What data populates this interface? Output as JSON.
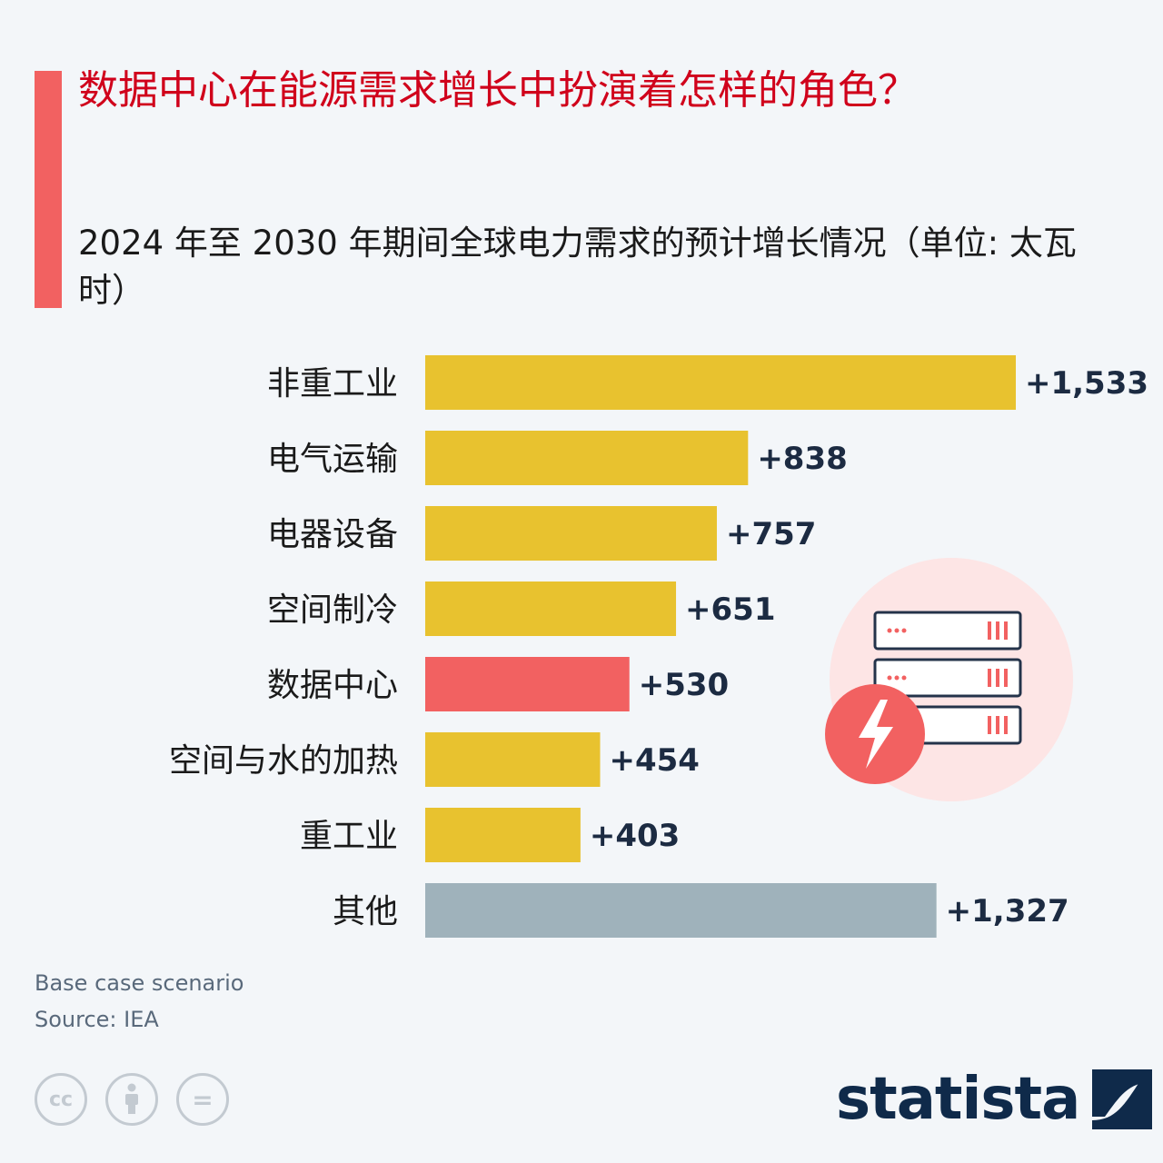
{
  "header": {
    "title": "数据中心在能源需求增长中扮演着怎样的角色？",
    "subtitle": "2024 年至 2030 年期间全球电力需求的预计增长情况（单位: 太瓦时）"
  },
  "chart_data": {
    "type": "bar",
    "orientation": "horizontal",
    "categories": [
      "非重工业",
      "电气运输",
      "电器设备",
      "空间制冷",
      "数据中心",
      "空间与水的加热",
      "重工业",
      "其他"
    ],
    "values": [
      1533,
      838,
      757,
      651,
      530,
      454,
      403,
      1327
    ],
    "value_labels": [
      "+1,533",
      "+838",
      "+757",
      "+651",
      "+530",
      "+454",
      "+403",
      "+1,327"
    ],
    "bar_colors": [
      "#e8c22f",
      "#e8c22f",
      "#e8c22f",
      "#e8c22f",
      "#f26161",
      "#e8c22f",
      "#e8c22f",
      "#9fb2bb"
    ],
    "xlim": [
      0,
      1533
    ],
    "grid": false,
    "legend": "none"
  },
  "footer": {
    "note": "Base case scenario",
    "source": "Source: IEA",
    "license_icons": [
      "cc-icon",
      "attribution-icon",
      "no-derivatives-icon"
    ],
    "cc_text": "cc",
    "nd_text": "=",
    "brand": "statista"
  },
  "colors": {
    "accent": "#f26161",
    "title": "#d0011b",
    "bar_default": "#e8c22f",
    "bar_highlight": "#f26161",
    "bar_other": "#9fb2bb",
    "value_text": "#1c2b42"
  }
}
